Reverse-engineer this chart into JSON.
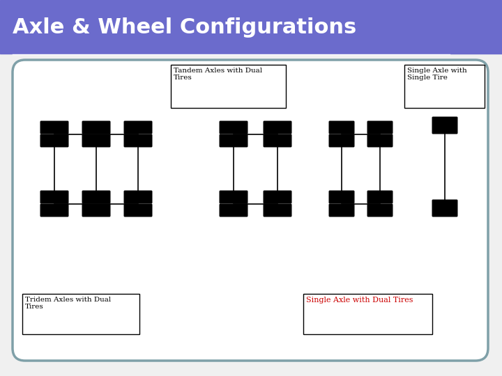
{
  "title": "Axle & Wheel Configurations",
  "title_bg": "#6b6bcc",
  "title_color": "white",
  "title_fontsize": 22,
  "bg_color": "#f0f0f0",
  "border_color": "#7fa0a8",
  "labels": {
    "tandem_dual": "Tandem Axles with Dual\nTires",
    "single_single": "Single Axle with\nSingle Tire",
    "tridem_dual": "Tridem Axles with Dual\nTires",
    "single_dual": "Single Axle with Dual Tires"
  },
  "label_colors": {
    "tandem_dual": "black",
    "single_single": "black",
    "tridem_dual": "black",
    "single_dual": "#cc0000"
  },
  "tire_color": "black"
}
